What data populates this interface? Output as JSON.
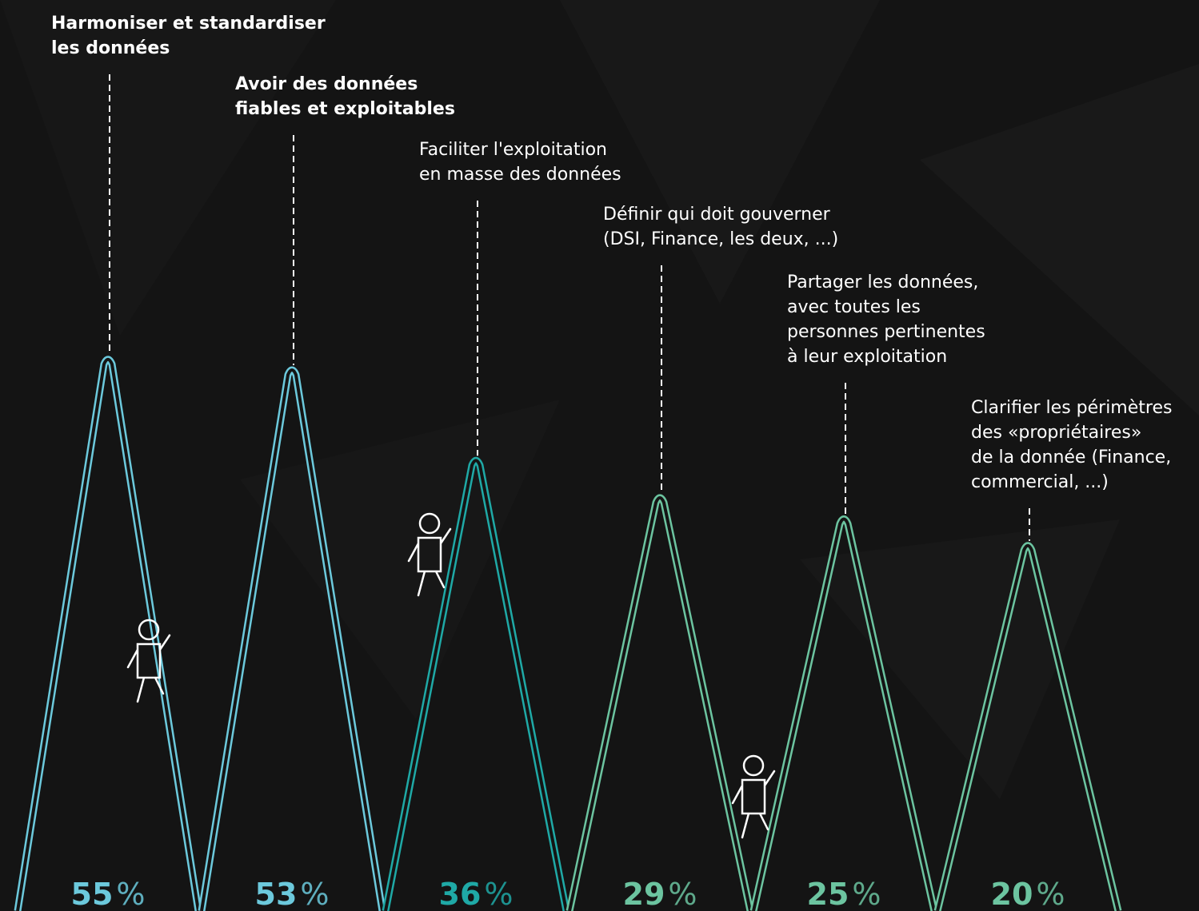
{
  "chart_data": {
    "type": "mountain",
    "categories": [
      "Harmoniser et standardiser\nles données",
      "Avoir des données\nfiables et exploitables",
      "Faciliter l'exploitation\nen masse des données",
      "Définir qui doit gouverner\n(DSI, Finance, les deux, ...)",
      "Partager les données,\navec toutes les\npersonnes pertinentes\nà leur exploitation",
      "Clarifier les périmètres\ndes «propriétaires»\nde la donnée (Finance,\ncommercial, ...)"
    ],
    "values": [
      55,
      53,
      36,
      29,
      25,
      20
    ],
    "value_labels": [
      "55%",
      "53%",
      "36%",
      "29%",
      "25%",
      "20%"
    ],
    "colors": [
      "#6cc9dc",
      "#6cc9dc",
      "#1fa9a6",
      "#6cc4a0",
      "#6cc4a0",
      "#6cc4a0"
    ]
  }
}
